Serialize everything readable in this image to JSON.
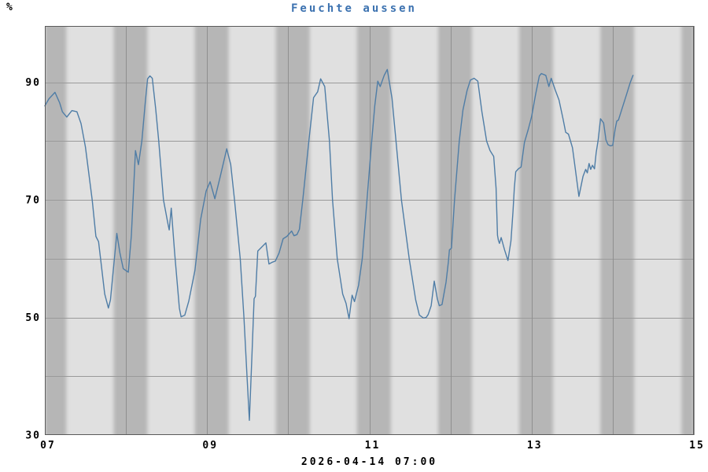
{
  "chart": {
    "title": "Feuchte aussen",
    "title_color": "#3c72b0",
    "y_unit": "%",
    "timestamp": "2026-04-14 07:00"
  },
  "chart_data": {
    "type": "line",
    "title": "Feuchte aussen",
    "ylabel": "%",
    "xlabel": "",
    "x_unit": "hours since 2026-04-07 00:00",
    "xlim": [
      0,
      192
    ],
    "ylim": [
      30,
      99.6
    ],
    "grid": true,
    "legend": "none",
    "x_tick_labels": [
      {
        "t": 0,
        "label": "07"
      },
      {
        "t": 48,
        "label": "09"
      },
      {
        "t": 96,
        "label": "11"
      },
      {
        "t": 144,
        "label": "13"
      },
      {
        "t": 192,
        "label": "15"
      }
    ],
    "x_gridlines_t": [
      0,
      24,
      48,
      72,
      96,
      120,
      144,
      168,
      192
    ],
    "y_tick_labels": [
      {
        "v": 90,
        "label": "90"
      },
      {
        "v": 70,
        "label": "70"
      },
      {
        "v": 50,
        "label": "50"
      },
      {
        "v": 30,
        "label": "30"
      }
    ],
    "y_gridlines": [
      40,
      50,
      60,
      70,
      80,
      90
    ],
    "night_bands_t": [
      [
        0,
        6.35
      ],
      [
        20.35,
        30.35
      ],
      [
        44.35,
        54.35
      ],
      [
        68.35,
        78.35
      ],
      [
        92.35,
        102.35
      ],
      [
        116.35,
        126.35
      ],
      [
        140.35,
        150.35
      ],
      [
        164.35,
        174.35
      ],
      [
        188.35,
        192
      ]
    ],
    "colors": {
      "plot_bg": "#e0e0e0",
      "night_band": "#b6b6b6",
      "gridline": "#9a9a9a",
      "day_line": "#8f8f8f",
      "frame": "#5a5a5a",
      "line": "#4f7da6"
    },
    "series": [
      {
        "name": "Feuchte aussen",
        "color": "#4f7da6",
        "points": [
          [
            0,
            86
          ],
          [
            1.2,
            87.2
          ],
          [
            3,
            88.3
          ],
          [
            4.4,
            86.5
          ],
          [
            5.2,
            85.0
          ],
          [
            6.5,
            84.1
          ],
          [
            8,
            85.2
          ],
          [
            9.5,
            85.0
          ],
          [
            10.7,
            83
          ],
          [
            12,
            79
          ],
          [
            14,
            70
          ],
          [
            15.1,
            63.8
          ],
          [
            15.9,
            62.9
          ],
          [
            17.7,
            54
          ],
          [
            18.8,
            51.6
          ],
          [
            19.4,
            53
          ],
          [
            21.3,
            64.3
          ],
          [
            22.2,
            61
          ],
          [
            23.2,
            58.3
          ],
          [
            24.7,
            57.7
          ],
          [
            25.6,
            64
          ],
          [
            26.8,
            78.4
          ],
          [
            27.7,
            76
          ],
          [
            28.7,
            80
          ],
          [
            29.7,
            86.5
          ],
          [
            30.4,
            90.6
          ],
          [
            31.1,
            91.1
          ],
          [
            31.8,
            90.7
          ],
          [
            32.8,
            85.5
          ],
          [
            33.7,
            80
          ],
          [
            35.1,
            70
          ],
          [
            36.4,
            66
          ],
          [
            36.8,
            64.9
          ],
          [
            37.4,
            68.6
          ],
          [
            38.4,
            61
          ],
          [
            39.8,
            51.6
          ],
          [
            40.3,
            50.1
          ],
          [
            41.4,
            50.4
          ],
          [
            42.6,
            52.8
          ],
          [
            44.4,
            58
          ],
          [
            46.1,
            66.7
          ],
          [
            47.7,
            71.5
          ],
          [
            48.9,
            73.1
          ],
          [
            50.3,
            70.2
          ],
          [
            51.9,
            74
          ],
          [
            53.8,
            78.7
          ],
          [
            55,
            76
          ],
          [
            56.1,
            70
          ],
          [
            57.8,
            60
          ],
          [
            58.9,
            50
          ],
          [
            59.8,
            40
          ],
          [
            60.5,
            32.5
          ],
          [
            61.3,
            44
          ],
          [
            61.9,
            53.2
          ],
          [
            62.3,
            53.6
          ],
          [
            63,
            61.3
          ],
          [
            64.2,
            62
          ],
          [
            65.4,
            62.7
          ],
          [
            66.3,
            59.1
          ],
          [
            67.3,
            59.4
          ],
          [
            68.2,
            59.6
          ],
          [
            69.3,
            61
          ],
          [
            70.5,
            63.4
          ],
          [
            71.6,
            63.8
          ],
          [
            73,
            64.7
          ],
          [
            73.7,
            63.9
          ],
          [
            74.6,
            64.1
          ],
          [
            75.3,
            65
          ],
          [
            76.3,
            70
          ],
          [
            78.1,
            80
          ],
          [
            79.5,
            87.4
          ],
          [
            80.7,
            88.4
          ],
          [
            81.6,
            90.6
          ],
          [
            82.8,
            89.3
          ],
          [
            84.2,
            80
          ],
          [
            85.1,
            70
          ],
          [
            86.5,
            60
          ],
          [
            88.1,
            54
          ],
          [
            89.1,
            52.4
          ],
          [
            90,
            49.8
          ],
          [
            90.9,
            53.8
          ],
          [
            91.6,
            52.7
          ],
          [
            92.8,
            55.5
          ],
          [
            93.9,
            60
          ],
          [
            95.3,
            70
          ],
          [
            96.7,
            80
          ],
          [
            97.6,
            86
          ],
          [
            98.5,
            90.2
          ],
          [
            99.2,
            89.3
          ],
          [
            100.4,
            91.2
          ],
          [
            101.3,
            92.2
          ],
          [
            102.7,
            87.3
          ],
          [
            103.9,
            80
          ],
          [
            105.5,
            70
          ],
          [
            107.8,
            60
          ],
          [
            109.7,
            53
          ],
          [
            110.8,
            50.4
          ],
          [
            112,
            49.9
          ],
          [
            112.8,
            50
          ],
          [
            113.4,
            50.5
          ],
          [
            114.3,
            52
          ],
          [
            115.2,
            56.2
          ],
          [
            116.1,
            53.2
          ],
          [
            116.7,
            52
          ],
          [
            117.5,
            52.2
          ],
          [
            118.7,
            56
          ],
          [
            119.4,
            59.5
          ],
          [
            119.7,
            61.5
          ],
          [
            120.3,
            61.8
          ],
          [
            121.2,
            70
          ],
          [
            122.6,
            80
          ],
          [
            123.7,
            85.3
          ],
          [
            124.9,
            88.6
          ],
          [
            125.9,
            90.4
          ],
          [
            127,
            90.7
          ],
          [
            128.1,
            90.2
          ],
          [
            129.3,
            85
          ],
          [
            130.7,
            80
          ],
          [
            131.7,
            78.4
          ],
          [
            132.8,
            77.4
          ],
          [
            133.5,
            72
          ],
          [
            133.9,
            64
          ],
          [
            134.2,
            63.1
          ],
          [
            134.5,
            62.6
          ],
          [
            135,
            63.6
          ],
          [
            136,
            61.5
          ],
          [
            137,
            59.7
          ],
          [
            137.9,
            63
          ],
          [
            138.5,
            68
          ],
          [
            138.9,
            72
          ],
          [
            139.3,
            74.8
          ],
          [
            140.1,
            75.3
          ],
          [
            140.9,
            75.6
          ],
          [
            141.9,
            79.8
          ],
          [
            143,
            82
          ],
          [
            144,
            84.2
          ],
          [
            145.2,
            88
          ],
          [
            146.3,
            91.1
          ],
          [
            146.9,
            91.5
          ],
          [
            148.2,
            91.2
          ],
          [
            149.1,
            89.3
          ],
          [
            149.8,
            90.7
          ],
          [
            151,
            88.7
          ],
          [
            152.1,
            87
          ],
          [
            153.3,
            83.8
          ],
          [
            154.1,
            81.5
          ],
          [
            154.9,
            81.2
          ],
          [
            156.1,
            78.9
          ],
          [
            156.8,
            75.8
          ],
          [
            158,
            70.6
          ],
          [
            159.2,
            74
          ],
          [
            160,
            75.2
          ],
          [
            160.5,
            74.6
          ],
          [
            161,
            76.2
          ],
          [
            161.5,
            75.2
          ],
          [
            162,
            75.9
          ],
          [
            162.6,
            75.3
          ],
          [
            163.1,
            78
          ],
          [
            163.7,
            80.2
          ],
          [
            164.4,
            83.8
          ],
          [
            165.3,
            83.1
          ],
          [
            166,
            80.2
          ],
          [
            166.6,
            79.4
          ],
          [
            167.3,
            79.2
          ],
          [
            168,
            79.3
          ],
          [
            168.7,
            82
          ],
          [
            169.2,
            83.4
          ],
          [
            169.7,
            83.6
          ],
          [
            170.8,
            85.6
          ],
          [
            172,
            87.8
          ],
          [
            173.2,
            90
          ],
          [
            174,
            91.2
          ]
        ]
      }
    ]
  }
}
